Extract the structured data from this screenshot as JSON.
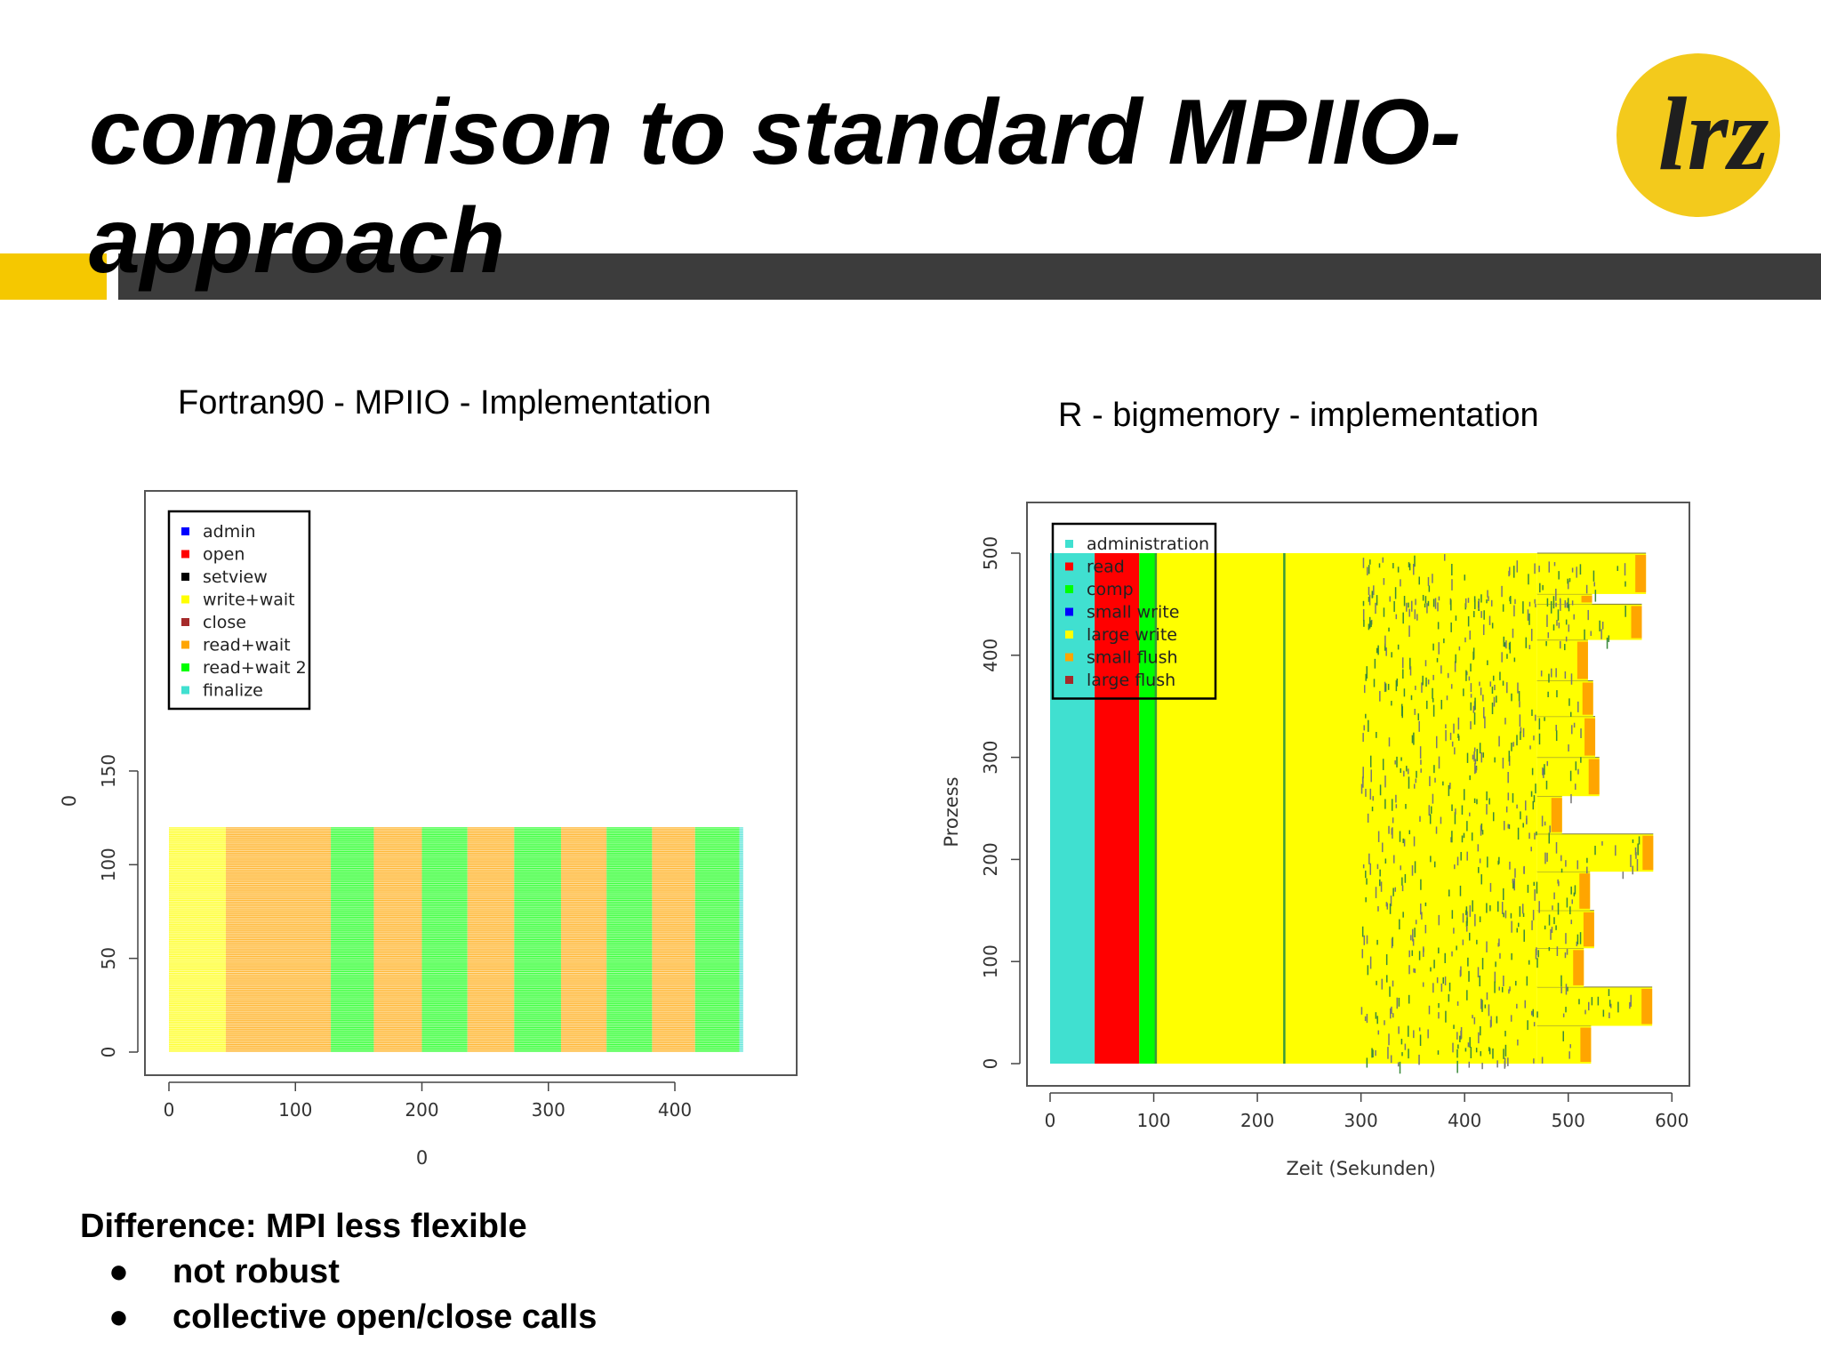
{
  "slide": {
    "title": "comparison to standard MPIIO-approach",
    "logo_text": "lrz",
    "colors": {
      "accent_yellow": "#f5c800",
      "dark_bar": "#3c3c3c",
      "logo_yellow": "#f3ca1c"
    }
  },
  "left_panel": {
    "title": "Fortran90 - MPIIO - Implementation"
  },
  "right_panel": {
    "title": "R - bigmemory - implementation"
  },
  "bottom": {
    "heading": "Difference: MPI less flexible",
    "bullets": [
      "not robust",
      "collective open/close calls"
    ]
  },
  "chart_data": [
    {
      "type": "bar",
      "orientation": "horizontal-gantt",
      "xlabel": "0",
      "ylabel": "0",
      "xlim": [
        0,
        500
      ],
      "ylim": [
        0,
        190
      ],
      "x_ticks": [
        0,
        100,
        200,
        300,
        400
      ],
      "y_ticks": [
        0,
        50,
        100,
        150
      ],
      "n_processes": 120,
      "legend": {
        "placement": "top-left",
        "items": [
          {
            "label": "admin",
            "color": "#0000ff"
          },
          {
            "label": "open",
            "color": "#ff0000"
          },
          {
            "label": "setview",
            "color": "#000000"
          },
          {
            "label": "write+wait",
            "color": "#ffff00"
          },
          {
            "label": "close",
            "color": "#a52a2a"
          },
          {
            "label": "read+wait",
            "color": "#ffa500"
          },
          {
            "label": "read+wait 2",
            "color": "#00ff00"
          },
          {
            "label": "finalize",
            "color": "#40e0d0"
          }
        ]
      },
      "segments": [
        {
          "phase": "write+wait",
          "start": 0,
          "end": 45
        },
        {
          "phase": "read+wait",
          "start": 45,
          "end": 128
        },
        {
          "phase": "read+wait 2",
          "start": 128,
          "end": 162
        },
        {
          "phase": "read+wait",
          "start": 162,
          "end": 200
        },
        {
          "phase": "read+wait 2",
          "start": 200,
          "end": 236
        },
        {
          "phase": "read+wait",
          "start": 236,
          "end": 273
        },
        {
          "phase": "read+wait 2",
          "start": 273,
          "end": 310
        },
        {
          "phase": "read+wait",
          "start": 310,
          "end": 346
        },
        {
          "phase": "read+wait 2",
          "start": 346,
          "end": 382
        },
        {
          "phase": "read+wait",
          "start": 382,
          "end": 416
        },
        {
          "phase": "read+wait 2",
          "start": 416,
          "end": 451
        },
        {
          "phase": "finalize",
          "start": 451,
          "end": 454
        }
      ]
    },
    {
      "type": "bar",
      "orientation": "horizontal-gantt",
      "xlabel": "Zeit (Sekunden)",
      "ylabel": "Prozess",
      "xlim": [
        0,
        600
      ],
      "ylim": [
        0,
        520
      ],
      "x_ticks": [
        0,
        100,
        200,
        300,
        400,
        500,
        600
      ],
      "y_ticks": [
        0,
        100,
        200,
        300,
        400,
        500
      ],
      "legend": {
        "placement": "top-left",
        "items": [
          {
            "label": "administration",
            "color": "#40e0d0"
          },
          {
            "label": "read",
            "color": "#ff0000"
          },
          {
            "label": "comp",
            "color": "#00ff00"
          },
          {
            "label": "small write",
            "color": "#0000ff"
          },
          {
            "label": "large write",
            "color": "#ffff00"
          },
          {
            "label": "small flush",
            "color": "#ffa500"
          },
          {
            "label": "large flush",
            "color": "#a52a2a"
          }
        ]
      },
      "phases": [
        {
          "phase": "administration",
          "start": 0,
          "end": 43,
          "p_start": 0,
          "p_end": 500
        },
        {
          "phase": "read",
          "start": 43,
          "end": 86,
          "p_start": 0,
          "p_end": 500
        },
        {
          "phase": "comp",
          "start": 86,
          "end": 102,
          "p_start": 0,
          "p_end": 500
        },
        {
          "phase": "large write",
          "start": 102,
          "end": 470,
          "p_start": 0,
          "p_end": 500
        }
      ],
      "group_end_times": [
        {
          "p_start": 0,
          "p_end": 37,
          "end": 522,
          "flush": "small flush"
        },
        {
          "p_start": 37,
          "p_end": 75,
          "end": 581,
          "flush": "small flush"
        },
        {
          "p_start": 75,
          "p_end": 113,
          "end": 515,
          "flush": "small flush"
        },
        {
          "p_start": 113,
          "p_end": 150,
          "end": 525,
          "flush": "small flush"
        },
        {
          "p_start": 150,
          "p_end": 188,
          "end": 521,
          "flush": "small flush"
        },
        {
          "p_start": 188,
          "p_end": 225,
          "end": 582,
          "flush": "small flush"
        },
        {
          "p_start": 225,
          "p_end": 262,
          "end": 494,
          "flush": "small flush"
        },
        {
          "p_start": 262,
          "p_end": 300,
          "end": 530,
          "flush": "small flush"
        },
        {
          "p_start": 300,
          "p_end": 340,
          "end": 526,
          "flush": "small flush"
        },
        {
          "p_start": 340,
          "p_end": 375,
          "end": 524,
          "flush": "small flush"
        },
        {
          "p_start": 375,
          "p_end": 415,
          "end": 519,
          "flush": "small flush"
        },
        {
          "p_start": 415,
          "p_end": 450,
          "end": 571,
          "flush": "small flush"
        },
        {
          "p_start": 450,
          "p_end": 460,
          "end": 523,
          "flush": "small flush"
        },
        {
          "p_start": 460,
          "p_end": 500,
          "end": 575,
          "flush": "small flush"
        }
      ]
    }
  ]
}
